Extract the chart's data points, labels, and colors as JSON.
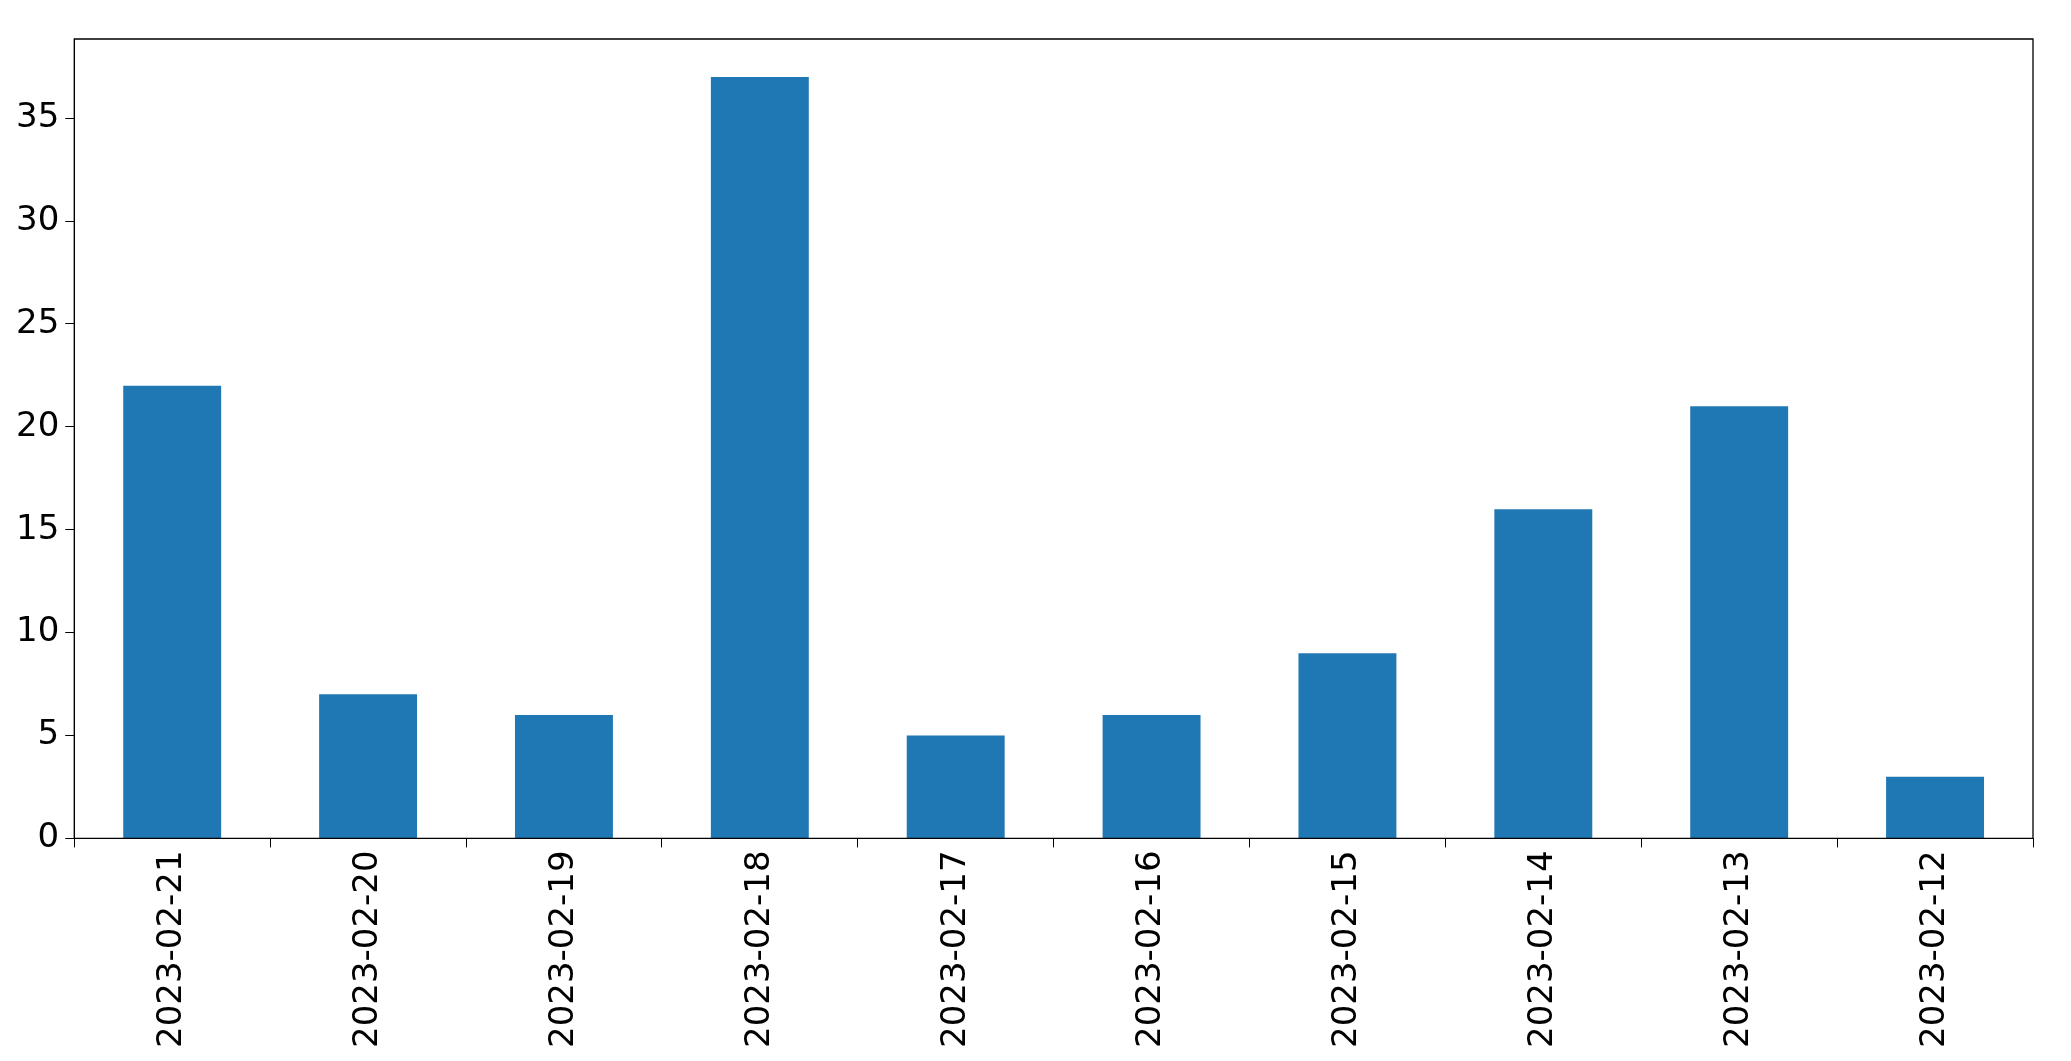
{
  "chart_data": {
    "type": "bar",
    "categories": [
      "2023-02-21",
      "2023-02-20",
      "2023-02-19",
      "2023-02-18",
      "2023-02-17",
      "2023-02-16",
      "2023-02-15",
      "2023-02-14",
      "2023-02-13",
      "2023-02-12"
    ],
    "values": [
      22,
      7,
      6,
      37,
      5,
      6,
      9,
      16,
      21,
      3
    ],
    "color": "#1f77b4",
    "ylim": [
      0,
      38.85
    ],
    "yticks": [
      0,
      5,
      10,
      15,
      20,
      25,
      30,
      35
    ],
    "grid": false,
    "legend": false
  }
}
